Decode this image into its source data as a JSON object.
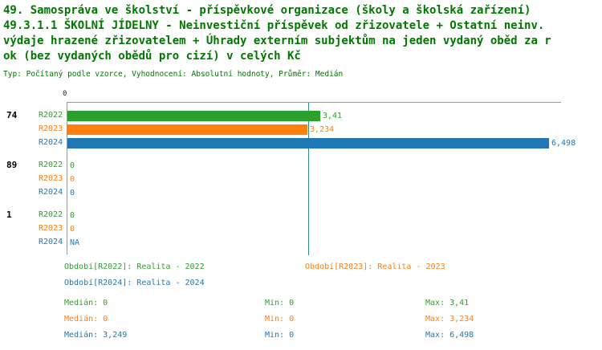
{
  "title": {
    "line1": "49. Samospráva ve školství - příspěvkové organizace (školy a školská zařízení)",
    "line2": "49.3.1.1 ŠKOLNÍ JÍDELNY - Neinvestiční příspěvek od zřizovatele + Ostatní neinv.",
    "line3": "výdaje hrazené zřizovatelem + Úhrady externím subjektům na jeden vydaný oběd za r",
    "line4": "ok (bez vydaných obědů pro cizí) v celých Kč",
    "meta": "Typ: Počítaný podle vzorce, Vyhodnocení: Absolutní hodnoty, Průměr: Medián"
  },
  "chart_data": {
    "type": "bar",
    "orientation": "horizontal",
    "axis_zero_label": "0",
    "xlim": [
      0,
      6.498
    ],
    "median_line_value": 3.249,
    "grid": false,
    "colors": {
      "R2022": "#2ca02c",
      "R2023": "#ff7f0e",
      "R2024": "#1f77b4"
    },
    "categories": [
      "74",
      "89",
      "1"
    ],
    "series": [
      {
        "name": "R2022",
        "values": [
          3.41,
          0,
          0
        ]
      },
      {
        "name": "R2023",
        "values": [
          3.234,
          0,
          0
        ]
      },
      {
        "name": "R2024",
        "values": [
          6.498,
          0,
          null
        ]
      }
    ],
    "groups": [
      {
        "label": "74",
        "rows": [
          {
            "series": "R2022",
            "value": 3.41,
            "display": "3,41"
          },
          {
            "series": "R2023",
            "value": 3.234,
            "display": "3,234"
          },
          {
            "series": "R2024",
            "value": 6.498,
            "display": "6,498"
          }
        ]
      },
      {
        "label": "89",
        "rows": [
          {
            "series": "R2022",
            "value": 0,
            "display": "0"
          },
          {
            "series": "R2023",
            "value": 0,
            "display": "0"
          },
          {
            "series": "R2024",
            "value": 0,
            "display": "0"
          }
        ]
      },
      {
        "label": "1",
        "rows": [
          {
            "series": "R2022",
            "value": 0,
            "display": "0"
          },
          {
            "series": "R2023",
            "value": 0,
            "display": "0"
          },
          {
            "series": "R2024",
            "value": null,
            "display": "NA"
          }
        ]
      }
    ]
  },
  "legend": [
    {
      "series": "R2022",
      "label": "Období[R2022]: Realita - 2022"
    },
    {
      "series": "R2023",
      "label": "Období[R2023]: Realita - 2023"
    },
    {
      "series": "R2024",
      "label": "Období[R2024]: Realita - 2024"
    }
  ],
  "stats": [
    {
      "series": "R2022",
      "cells": [
        "Medián: 0",
        "Min: 0",
        "Max: 3,41"
      ]
    },
    {
      "series": "R2023",
      "cells": [
        "Medián: 0",
        "Min: 0",
        "Max: 3,234"
      ]
    },
    {
      "series": "R2024",
      "cells": [
        "Medián: 3,249",
        "Min: 0",
        "Max: 6,498"
      ]
    }
  ]
}
